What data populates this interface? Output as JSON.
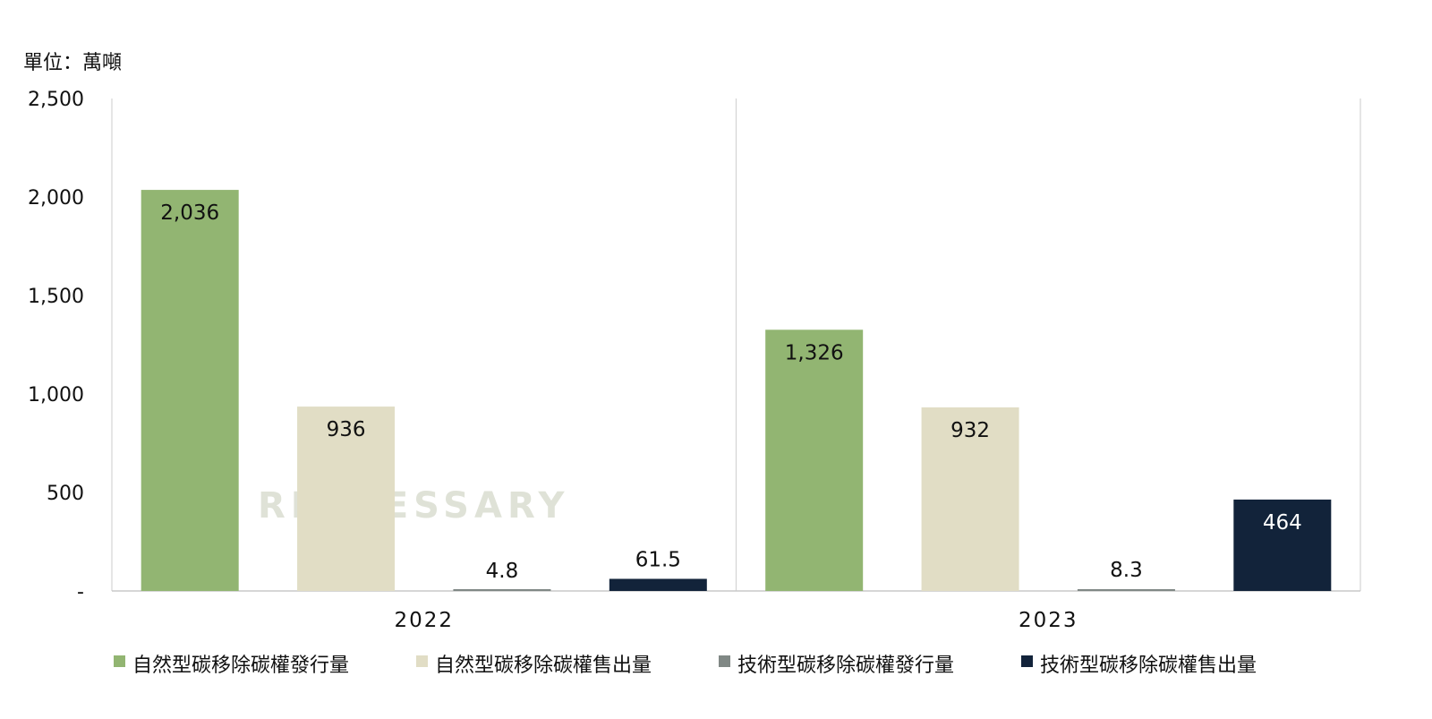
{
  "chart_data": {
    "type": "bar",
    "unit_label": "單位：萬噸",
    "categories": [
      "2022",
      "2023"
    ],
    "series": [
      {
        "name": "自然型碳移除碳權發行量",
        "values": [
          2036,
          1326
        ],
        "labels": [
          "2,036",
          "1,326"
        ],
        "color": "#92B572",
        "label_color": "#111111"
      },
      {
        "name": "自然型碳移除碳權售出量",
        "values": [
          936,
          932
        ],
        "labels": [
          "936",
          "932"
        ],
        "color": "#E1DDC5",
        "label_color": "#111111"
      },
      {
        "name": "技術型碳移除碳權發行量",
        "values": [
          4.8,
          8.3
        ],
        "labels": [
          "4.8",
          "8.3"
        ],
        "color": "#808885",
        "label_color": "#111111"
      },
      {
        "name": "技術型碳移除碳權售出量",
        "values": [
          61.5,
          464
        ],
        "labels": [
          "61.5",
          "464"
        ],
        "color": "#12233A",
        "label_color": "#ffffff"
      }
    ],
    "y_ticks": [
      0,
      500,
      1000,
      1500,
      2000,
      2500
    ],
    "y_tick_labels": [
      "-",
      "500",
      "1,000",
      "1,500",
      "2,000",
      "2,500"
    ],
    "ylim": [
      0,
      2500
    ],
    "grid": false,
    "legend": "bottom",
    "watermark": "RECCESSARY"
  }
}
